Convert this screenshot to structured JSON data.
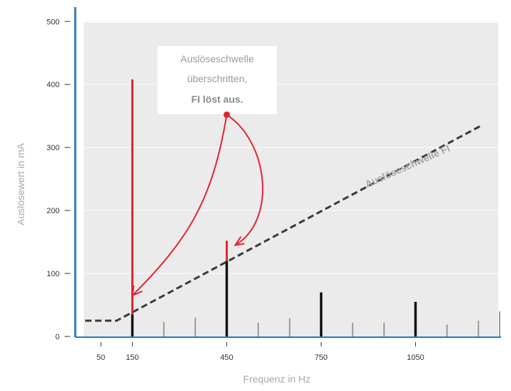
{
  "chart_data": {
    "type": "bar",
    "title": "",
    "xlabel": "Frequenz in Hz",
    "ylabel": "Auslösewert in mA",
    "xlim": [
      0,
      1300
    ],
    "ylim": [
      0,
      500
    ],
    "x_ticks": [
      50,
      150,
      450,
      750,
      1050
    ],
    "y_ticks": [
      0,
      100,
      200,
      300,
      400,
      500
    ],
    "grid": true,
    "series": [
      {
        "values": [
          {
            "x": 150,
            "y": 35
          },
          {
            "x": 250,
            "y": 23
          },
          {
            "x": 350,
            "y": 30
          },
          {
            "x": 450,
            "y": 120
          },
          {
            "x": 550,
            "y": 22
          },
          {
            "x": 650,
            "y": 29
          },
          {
            "x": 750,
            "y": 70
          },
          {
            "x": 850,
            "y": 22
          },
          {
            "x": 950,
            "y": 22
          },
          {
            "x": 1050,
            "y": 55
          },
          {
            "x": 1150,
            "y": 19
          },
          {
            "x": 1250,
            "y": 25
          },
          {
            "x": 1350,
            "y": 40
          }
        ]
      },
      {
        "values": [
          {
            "x": 150,
            "y": 408
          },
          {
            "x": 450,
            "y": 152
          }
        ]
      }
    ],
    "threshold": {
      "label": "Auslöseschwelle FI",
      "points": [
        [
          0,
          25
        ],
        [
          100,
          25
        ],
        [
          1260,
          335
        ]
      ]
    },
    "annotation": {
      "lines": [
        "Auslöseschwelle",
        "überschritten,",
        "FI löst aus."
      ],
      "anchor": [
        450,
        352
      ],
      "arrow_targets": [
        [
          150,
          65
        ],
        [
          450,
          145
        ]
      ]
    },
    "colors": {
      "background": "#ebebeb",
      "grid": "#f7f7f7",
      "axis": "#2a7bc0",
      "bar": "#111111",
      "minor_bar": "#9a9a9a",
      "exceed": "#e52330",
      "threshold": "#3a3a3a"
    }
  }
}
